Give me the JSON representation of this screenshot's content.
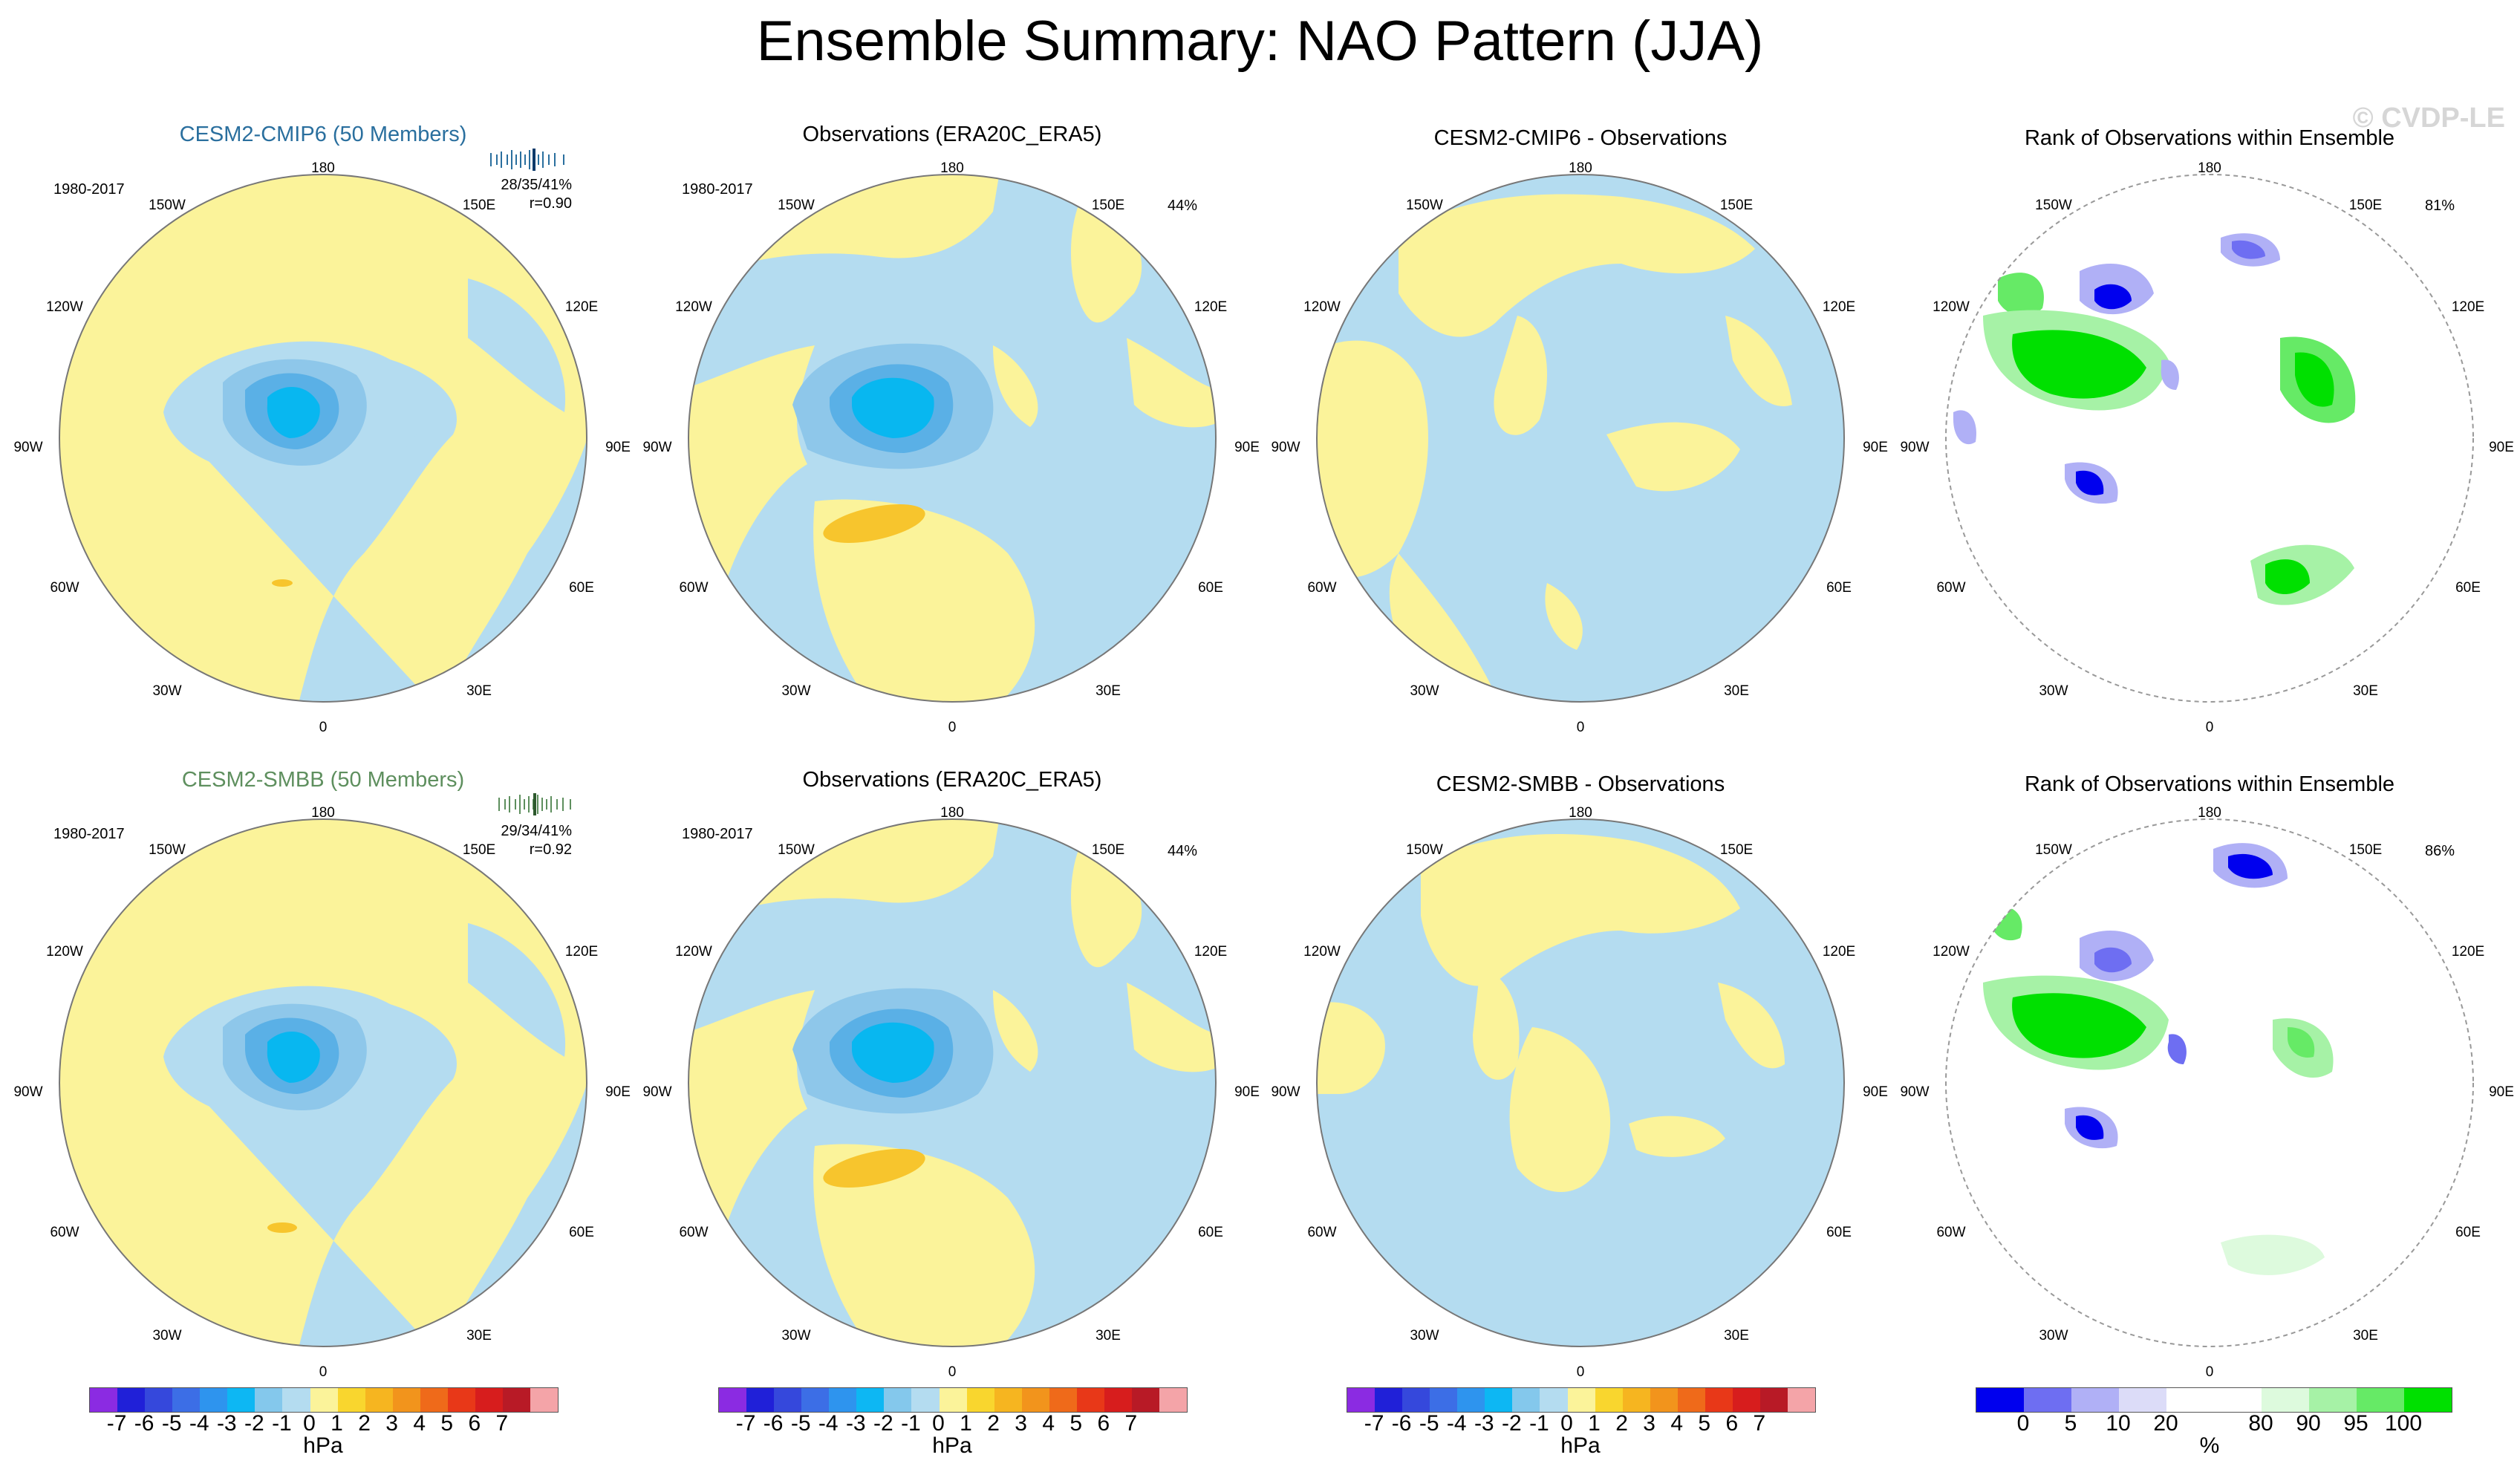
{
  "title": "Ensemble Summary: NAO Pattern (JJA)",
  "watermark": "© CVDP-LE",
  "period": "1980-2017",
  "lon_labels": [
    "180",
    "150E",
    "120E",
    "90E",
    "60E",
    "30E",
    "0",
    "30W",
    "60W",
    "90W",
    "120W",
    "150W"
  ],
  "row1": {
    "p1_title": "CESM2-CMIP6 (50 Members)",
    "p1_stats1": "28/35/41%",
    "p1_stats2": "r=0.90",
    "p2_title": "Observations (ERA20C_ERA5)",
    "p2_pct": "44%",
    "p3_title": "CESM2-CMIP6 - Observations",
    "p4_title": "Rank of Observations within Ensemble",
    "p4_pct": "81%"
  },
  "row2": {
    "p1_title": "CESM2-SMBB (50 Members)",
    "p1_stats1": "29/34/41%",
    "p1_stats2": "r=0.92",
    "p2_title": "Observations (ERA20C_ERA5)",
    "p2_pct": "44%",
    "p3_title": "CESM2-SMBB - Observations",
    "p4_title": "Rank of Observations within Ensemble",
    "p4_pct": "86%"
  },
  "colors": {
    "model1_title": "#2a6f9e",
    "model2_title": "#5e8f5e",
    "ocean_pos": "#fbf39a",
    "neg1": "#b4dcf0",
    "neg2": "#8ec7ea",
    "neg3": "#5ab0e6",
    "neg4": "#08b7f0",
    "pos2": "#f7c52d"
  },
  "hpa_colorbar": {
    "colors": [
      "#8b2be2",
      "#2020d8",
      "#3548dc",
      "#3c6ee6",
      "#2e94ee",
      "#0db7f3",
      "#84c8ec",
      "#b4dcf0",
      "#fbf39a",
      "#f9d62e",
      "#f6b520",
      "#f2941c",
      "#ef6a1a",
      "#e83818",
      "#d71d1d",
      "#b81a26",
      "#f4a4a8"
    ],
    "ticks": [
      "-7",
      "-6",
      "-5",
      "-4",
      "-3",
      "-2",
      "-1",
      "0",
      "1",
      "2",
      "3",
      "4",
      "5",
      "6",
      "7"
    ],
    "unit": "hPa"
  },
  "rank_colorbar": {
    "colors": [
      "#0000ee",
      "#6e6ef2",
      "#b0b0f6",
      "#dcdcf8",
      "#ffffff",
      "#ffffff",
      "#ddfadd",
      "#a6f2a6",
      "#66ea66",
      "#00e000"
    ],
    "ticks": [
      "0",
      "5",
      "10",
      "20",
      "80",
      "90",
      "95",
      "100"
    ],
    "unit": "%"
  }
}
